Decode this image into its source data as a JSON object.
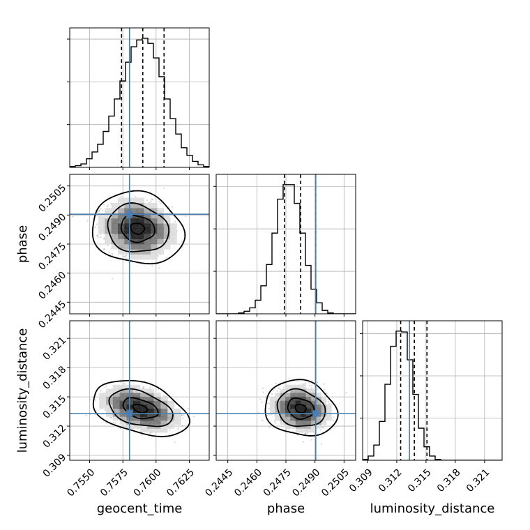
{
  "chart_data": {
    "type": "corner",
    "parameters": [
      "geocent_time",
      "phase",
      "luminosity_distance"
    ],
    "truth_color": "#4a7fb5",
    "truths": {
      "geocent_time": 0.758,
      "phase": 0.24904,
      "luminosity_distance": 0.3133
    },
    "ranges": {
      "geocent_time": [
        0.7535,
        0.764
      ],
      "phase": [
        0.2439,
        0.2511
      ],
      "luminosity_distance": [
        0.3085,
        0.3228
      ]
    },
    "ticks": {
      "geocent_time": [
        "0.7550",
        "0.7575",
        "0.7600",
        "0.7625"
      ],
      "phase": [
        "0.2445",
        "0.2460",
        "0.2475",
        "0.2490",
        "0.2505"
      ],
      "luminosity_distance": [
        "0.309",
        "0.312",
        "0.315",
        "0.318",
        "0.321"
      ]
    },
    "quantiles": {
      "geocent_time": [
        0.7574,
        0.759,
        0.7606
      ],
      "phase": [
        0.24742,
        0.24826,
        0.24904
      ],
      "luminosity_distance": [
        0.3124,
        0.3138,
        0.3151
      ]
    },
    "histograms": {
      "geocent_time": {
        "bins": [
          0.7535,
          0.764
        ],
        "counts": [
          1,
          2,
          4,
          10,
          18,
          27,
          42,
          60,
          80,
          101,
          123,
          141,
          149,
          151,
          145,
          128,
          106,
          80,
          57,
          39,
          23,
          14,
          7,
          3,
          1
        ]
      },
      "phase": {
        "bins": [
          0.2439,
          0.2511
        ],
        "counts": [
          0,
          0,
          0,
          0,
          1,
          3,
          7,
          16,
          33,
          58,
          95,
          135,
          152,
          152,
          130,
          95,
          57,
          29,
          13,
          4,
          1,
          0,
          0,
          0,
          0
        ]
      },
      "luminosity_distance": {
        "bins": [
          0.3085,
          0.3228
        ],
        "counts": [
          1,
          5,
          18,
          46,
          90,
          135,
          153,
          152,
          119,
          78,
          38,
          16,
          5,
          1,
          0,
          0,
          0,
          0,
          0,
          0,
          0,
          0,
          0,
          0,
          0
        ]
      }
    },
    "contours": {
      "phase_vs_geocent_time": {
        "mean": [
          0.7586,
          0.2483
        ],
        "sd": [
          0.00115,
          0.00062
        ],
        "rho": -0.12
      },
      "luminosity_distance_vs_geocent_time": {
        "mean": [
          0.7588,
          0.3138
        ],
        "sd": [
          0.0012,
          0.00095
        ],
        "rho": -0.38
      },
      "luminosity_distance_vs_phase": {
        "mean": [
          0.24826,
          0.3138
        ],
        "sd": [
          0.00062,
          0.00095
        ],
        "rho": -0.15
      }
    },
    "grid": true
  }
}
